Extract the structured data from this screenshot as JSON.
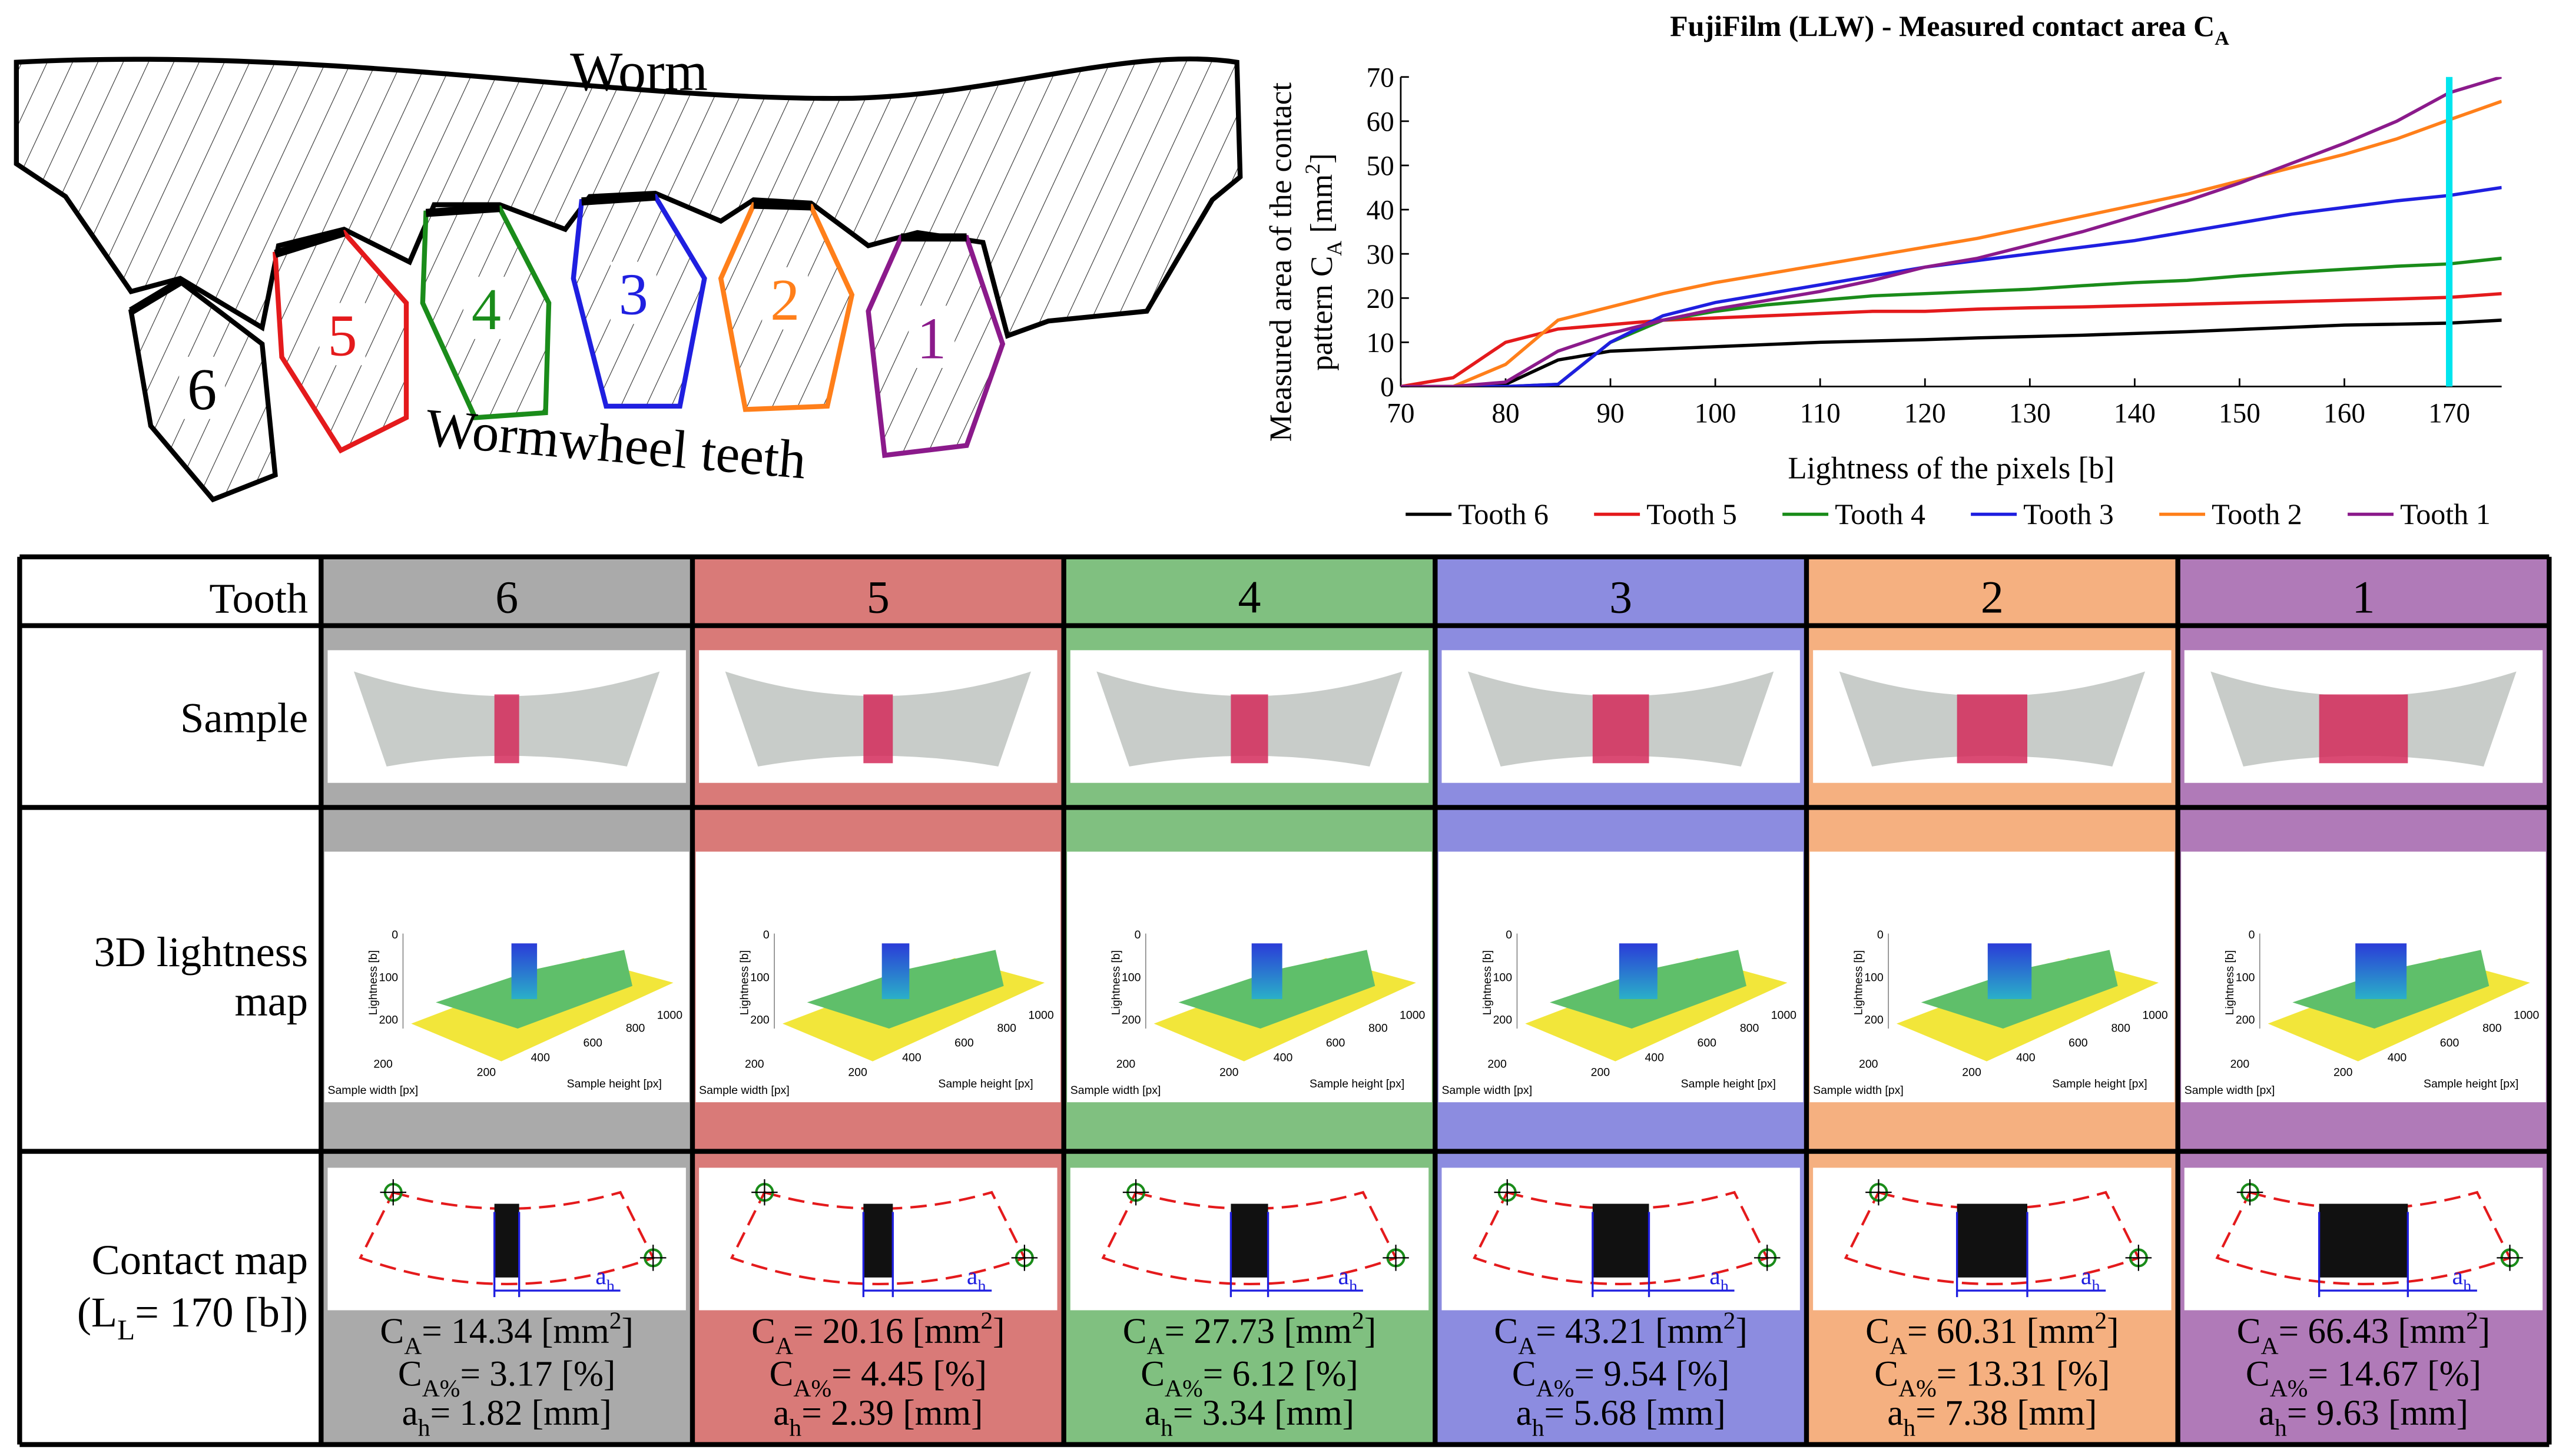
{
  "diagram": {
    "worm": "Worm",
    "label": "Wormwheel teeth",
    "teeth": [
      {
        "label": "6",
        "color": "#000000"
      },
      {
        "label": "5",
        "color": "#e41a1c"
      },
      {
        "label": "4",
        "color": "#1a8c1a"
      },
      {
        "label": "3",
        "color": "#1f1fe0"
      },
      {
        "label": "2",
        "color": "#ff7f1a"
      },
      {
        "label": "1",
        "color": "#8b1a8b"
      }
    ]
  },
  "chart_data": {
    "type": "line",
    "title": {
      "text": "FujiFilm (LLW) - Measured contact area C",
      "sub": "A"
    },
    "ylabel": {
      "line1": "Measured area of the contact",
      "line2": "pattern C",
      "sub": "A",
      "unit": " [mm",
      "sup": "2",
      "close": "]"
    },
    "xlabel": "Lightness of the pixels [b]",
    "x": [
      70,
      75,
      80,
      85,
      90,
      95,
      100,
      105,
      110,
      115,
      120,
      125,
      130,
      135,
      140,
      145,
      150,
      155,
      160,
      165,
      170,
      175
    ],
    "series": [
      {
        "name": "Tooth 6",
        "color": "#000000",
        "values": [
          0,
          0,
          0.5,
          6,
          8,
          8.5,
          9,
          9.5,
          10,
          10.3,
          10.6,
          11,
          11.3,
          11.6,
          12,
          12.4,
          12.9,
          13.4,
          13.9,
          14.1,
          14.34,
          15
        ]
      },
      {
        "name": "Tooth 5",
        "color": "#e41a1c",
        "values": [
          0,
          2,
          10,
          13,
          14,
          15,
          15.5,
          16,
          16.5,
          17,
          17,
          17.5,
          17.8,
          18,
          18.3,
          18.6,
          18.9,
          19.2,
          19.5,
          19.8,
          20.16,
          21
        ]
      },
      {
        "name": "Tooth 4",
        "color": "#1a8c1a",
        "values": [
          0,
          0,
          0,
          0.5,
          10,
          15,
          17,
          18.5,
          19.5,
          20.5,
          21,
          21.5,
          22,
          22.8,
          23.5,
          24,
          25,
          25.8,
          26.5,
          27.2,
          27.73,
          29
        ]
      },
      {
        "name": "Tooth 3",
        "color": "#1f1fe0",
        "values": [
          0,
          0,
          0,
          0.5,
          10,
          16,
          19,
          21,
          23,
          25,
          27,
          28.5,
          30,
          31.5,
          33,
          35,
          37,
          39,
          40.5,
          42,
          43.21,
          45
        ]
      },
      {
        "name": "Tooth 2",
        "color": "#ff7f1a",
        "values": [
          0,
          0,
          5,
          15,
          18,
          21,
          23.5,
          25.5,
          27.5,
          29.5,
          31.5,
          33.5,
          36,
          38.5,
          41,
          43.5,
          46.5,
          49.5,
          52.5,
          56,
          60.31,
          64.5
        ]
      },
      {
        "name": "Tooth 1",
        "color": "#8b1a8b",
        "values": [
          0,
          0,
          1,
          8,
          12,
          15,
          17.5,
          19.5,
          21.5,
          24,
          27,
          29,
          32,
          35,
          38.5,
          42,
          46,
          50.5,
          55,
          60,
          66.43,
          70
        ]
      }
    ],
    "xlim": [
      70,
      175
    ],
    "xticks": [
      70,
      80,
      90,
      100,
      110,
      120,
      130,
      140,
      150,
      160,
      170
    ],
    "ylim": [
      0,
      70
    ],
    "yticks": [
      0,
      10,
      20,
      30,
      40,
      50,
      60,
      70
    ],
    "vline": {
      "x": 170,
      "color": "#00e5ee"
    },
    "legend": "bottom"
  },
  "table": {
    "header": "Tooth",
    "rows": [
      "Sample",
      "3D lightness map",
      "Contact map"
    ],
    "contact_note": {
      "open": "(L",
      "sub": "L",
      "rest": "= 170 [b])"
    },
    "symbols": {
      "c": "C",
      "a": "A",
      "ap": "A%",
      "eq": "= ",
      "mm": " [mm",
      "two": "2",
      "close": "]",
      "pct": " [%]",
      "ah": "a",
      "h": "h",
      "mmh": " [mm]"
    },
    "mini3d": {
      "zlabel": "Lightness [b]",
      "zticks": [
        "0",
        "100",
        "200"
      ],
      "xlabel": "Sample width [px]",
      "xticks": [
        "200"
      ],
      "ylabel": "Sample height [px]",
      "yticks": [
        "200",
        "400",
        "600",
        "800",
        "1000"
      ]
    },
    "columns": [
      {
        "tooth": "6",
        "color": "#aaaaaa",
        "ca": "14.34",
        "cap": "3.17",
        "ah": "1.82"
      },
      {
        "tooth": "5",
        "color": "#d97a78",
        "ca": "20.16",
        "cap": "4.45",
        "ah": "2.39"
      },
      {
        "tooth": "4",
        "color": "#80c080",
        "ca": "27.73",
        "cap": "6.12",
        "ah": "3.34"
      },
      {
        "tooth": "3",
        "color": "#8c8ce0",
        "ca": "43.21",
        "cap": "9.54",
        "ah": "5.68"
      },
      {
        "tooth": "2",
        "color": "#f5b080",
        "ca": "60.31",
        "cap": "13.31",
        "ah": "7.38"
      },
      {
        "tooth": "1",
        "color": "#b07ab8",
        "ca": "66.43",
        "cap": "14.67",
        "ah": "9.63"
      }
    ]
  }
}
